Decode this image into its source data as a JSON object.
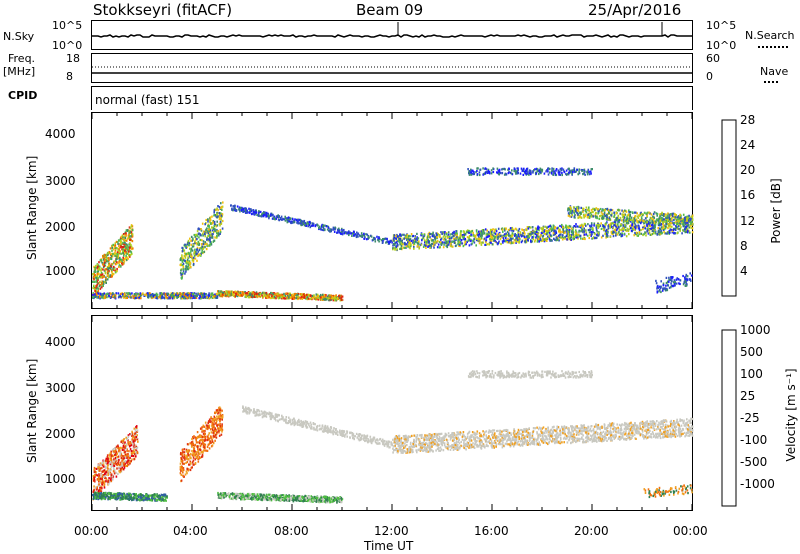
{
  "header": {
    "station": "Stokkseyri (fitACF)",
    "beam": "Beam 09",
    "date": "25/Apr/2016"
  },
  "sky_panel": {
    "left_label": "N.Sky",
    "right_label": "N.Search",
    "tick_top": "10^5",
    "tick_bottom": "10^0"
  },
  "freq_panel": {
    "left_label_1": "Freq.",
    "left_label_2": "[MHz]",
    "left_tick_top": "18",
    "left_tick_bottom": "8",
    "right_label": "Nave",
    "right_tick_top": "60",
    "right_tick_bottom": "0"
  },
  "cpid_panel": {
    "label": "CPID",
    "value": "normal (fast) 151"
  },
  "chart_data": [
    {
      "type": "heatmap",
      "name": "power",
      "ylabel": "Slant Range [km]",
      "xlabel": "Time UT",
      "x_ticks": [
        "00:00",
        "04:00",
        "08:00",
        "12:00",
        "16:00",
        "20:00",
        "00:00"
      ],
      "y_ticks": [
        1000,
        2000,
        3000,
        4000
      ],
      "ylim": [
        200,
        4600
      ],
      "xlim_hours": [
        0,
        24
      ],
      "colorbar_label": "Power [dB]",
      "colorbar_ticks": [
        "4",
        "8",
        "12",
        "16",
        "20",
        "24",
        "28"
      ],
      "colorbar_colors": [
        "#1a1aff",
        "#2f4fbf",
        "#3c8c6a",
        "#4fb84f",
        "#b0d020",
        "#f0c010",
        "#f08000",
        "#e02010"
      ]
    },
    {
      "type": "heatmap",
      "name": "velocity",
      "ylabel": "Slant Range [km]",
      "xlabel": "Time UT",
      "x_ticks": [
        "00:00",
        "04:00",
        "08:00",
        "12:00",
        "16:00",
        "20:00",
        "00:00"
      ],
      "y_ticks": [
        1000,
        2000,
        3000,
        4000
      ],
      "ylim": [
        200,
        4600
      ],
      "xlim_hours": [
        0,
        24
      ],
      "colorbar_label": "Velocity [m s⁻¹]",
      "colorbar_ticks": [
        "1000",
        "500",
        "100",
        "25",
        "-25",
        "-100",
        "-500",
        "-1000"
      ],
      "colorbar_colors": [
        "#2040c0",
        "#3060a0",
        "#308050",
        "#50c040",
        "#c8c8c0",
        "#c8c8c0",
        "#f0a020",
        "#f07010",
        "#e03010",
        "#e00010"
      ]
    }
  ],
  "x_axis_title": "Time UT"
}
